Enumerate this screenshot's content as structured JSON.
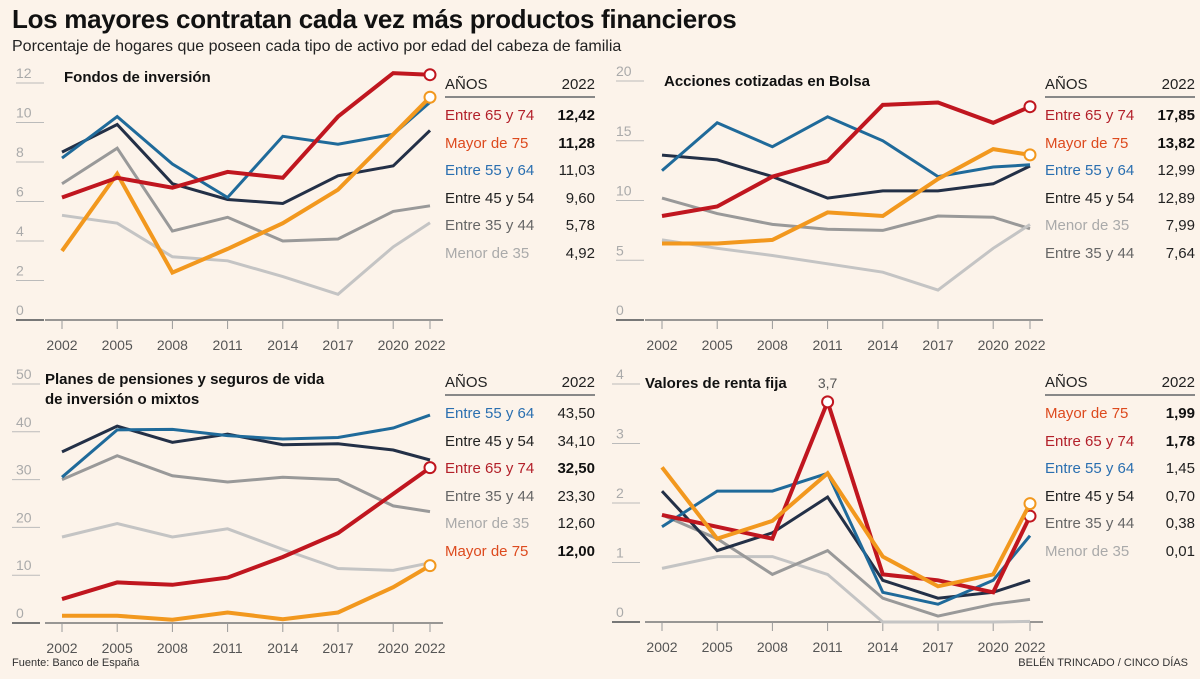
{
  "header": {
    "title": "Los mayores contratan cada vez más productos financieros",
    "subtitle": "Porcentaje de hogares que poseen cada tipo de activo por edad del cabeza de familia"
  },
  "footer": {
    "source": "Fuente: Banco de España",
    "credit": "BELÉN TRINCADO / CINCO DÍAS"
  },
  "colors": {
    "Entre 65 y 74": "#c0161f",
    "Mayor de 75": "#f2981e",
    "Entre 55 y 64": "#1f6a9a",
    "Entre 45 y 54": "#233047",
    "Entre 35 y 44": "#999999",
    "Menor de 35": "#c4c4c4"
  },
  "label_colors": {
    "Entre 65 y 74": "#b3202a",
    "Mayor de 75": "#dd4a1e",
    "Entre 55 y 64": "#2a6fb0",
    "Entre 45 y 54": "#222222",
    "Entre 35 y 44": "#666666",
    "Menor de 35": "#aaaaaa"
  },
  "chart_data": [
    {
      "type": "line",
      "title": "Fondos de inversión",
      "x": [
        "2002",
        "2005",
        "2008",
        "2011",
        "2014",
        "2017",
        "2020",
        "2022"
      ],
      "ylim": [
        0,
        12
      ],
      "yticks": [
        "0",
        "2",
        "4",
        "6",
        "8",
        "10",
        "12"
      ],
      "xlabel": "",
      "ylabel": "%",
      "legend_header": [
        "AÑOS",
        "2022"
      ],
      "series": [
        {
          "name": "Entre 65 y 74",
          "values": [
            6.2,
            7.2,
            6.7,
            7.5,
            7.2,
            10.3,
            12.5,
            12.42
          ],
          "label": "12,42",
          "bold": true,
          "marker": true
        },
        {
          "name": "Mayor de 75",
          "values": [
            3.5,
            7.4,
            2.4,
            3.6,
            4.9,
            6.6,
            9.4,
            11.28
          ],
          "label": "11,28",
          "bold": true,
          "marker": true
        },
        {
          "name": "Entre 55 y 64",
          "values": [
            8.2,
            10.3,
            7.9,
            6.2,
            9.3,
            8.9,
            9.4,
            11.03
          ],
          "label": "11,03",
          "bold": false,
          "marker": false
        },
        {
          "name": "Entre 45 y 54",
          "values": [
            8.5,
            9.9,
            6.9,
            6.1,
            5.9,
            7.3,
            7.8,
            9.6
          ],
          "label": "9,60",
          "bold": false,
          "marker": false
        },
        {
          "name": "Entre 35 y 44",
          "values": [
            6.9,
            8.7,
            4.5,
            5.2,
            4.0,
            4.1,
            5.5,
            5.78
          ],
          "label": "5,78",
          "bold": false,
          "marker": false
        },
        {
          "name": "Menor de 35",
          "values": [
            5.3,
            4.9,
            3.2,
            3.0,
            2.2,
            1.3,
            3.7,
            4.92
          ],
          "label": "4,92",
          "bold": false,
          "marker": false
        }
      ],
      "annotations": []
    },
    {
      "type": "line",
      "title": "Acciones cotizadas en Bolsa",
      "x": [
        "2002",
        "2005",
        "2008",
        "2011",
        "2014",
        "2017",
        "2020",
        "2022"
      ],
      "ylim": [
        0,
        20
      ],
      "yticks": [
        "0",
        "5",
        "10",
        "15",
        "20"
      ],
      "xlabel": "",
      "ylabel": "%",
      "legend_header": [
        "AÑOS",
        "2022"
      ],
      "series": [
        {
          "name": "Entre 65 y 74",
          "values": [
            8.7,
            9.5,
            12.0,
            13.3,
            18.0,
            18.2,
            16.5,
            17.85
          ],
          "label": "17,85",
          "bold": true,
          "marker": true
        },
        {
          "name": "Mayor de 75",
          "values": [
            6.4,
            6.4,
            6.7,
            9.0,
            8.7,
            11.8,
            14.3,
            13.82
          ],
          "label": "13,82",
          "bold": true,
          "marker": true
        },
        {
          "name": "Entre 55 y 64",
          "values": [
            12.5,
            16.5,
            14.5,
            17.0,
            15.0,
            12.0,
            12.8,
            12.99
          ],
          "label": "12,99",
          "bold": false,
          "marker": false
        },
        {
          "name": "Entre 45 y 54",
          "values": [
            13.8,
            13.4,
            12.0,
            10.2,
            10.8,
            10.8,
            11.4,
            12.89
          ],
          "label": "12,89",
          "bold": false,
          "marker": false
        },
        {
          "name": "Menor de 35",
          "values": [
            6.7,
            6.0,
            5.4,
            4.7,
            4.0,
            2.5,
            6.0,
            7.99
          ],
          "label": "7,99",
          "bold": false,
          "marker": false
        },
        {
          "name": "Entre 35 y 44",
          "values": [
            10.2,
            8.9,
            8.0,
            7.6,
            7.5,
            8.7,
            8.6,
            7.64
          ],
          "label": "7,64",
          "bold": false,
          "marker": false
        }
      ],
      "annotations": []
    },
    {
      "type": "line",
      "title": "Planes de pensiones y seguros de vida de inversión o mixtos",
      "title_lines": [
        "Planes de pensiones y seguros de vida",
        "de inversión o mixtos"
      ],
      "x": [
        "2002",
        "2005",
        "2008",
        "2011",
        "2014",
        "2017",
        "2020",
        "2022"
      ],
      "ylim": [
        0,
        50
      ],
      "yticks": [
        "0",
        "10",
        "20",
        "30",
        "40",
        "50"
      ],
      "xlabel": "",
      "ylabel": "%",
      "legend_header": [
        "AÑOS",
        "2022"
      ],
      "series": [
        {
          "name": "Entre 55 y 64",
          "values": [
            30.5,
            40.4,
            40.5,
            39.2,
            38.5,
            38.8,
            40.8,
            43.5
          ],
          "label": "43,50",
          "bold": false,
          "marker": false
        },
        {
          "name": "Entre 45 y 54",
          "values": [
            35.8,
            41.2,
            37.8,
            39.5,
            37.3,
            37.5,
            36.2,
            34.1
          ],
          "label": "34,10",
          "bold": false,
          "marker": false
        },
        {
          "name": "Entre 65 y 74",
          "values": [
            5.0,
            8.5,
            8.0,
            9.5,
            13.8,
            18.8,
            27.0,
            32.5
          ],
          "label": "32,50",
          "bold": true,
          "marker": true
        },
        {
          "name": "Entre 35 y 44",
          "values": [
            30.0,
            35.0,
            30.8,
            29.5,
            30.5,
            30.0,
            24.5,
            23.3
          ],
          "label": "23,30",
          "bold": false,
          "marker": false
        },
        {
          "name": "Menor de 35",
          "values": [
            18.0,
            20.8,
            18.0,
            19.7,
            15.4,
            11.4,
            11.0,
            12.6
          ],
          "label": "12,60",
          "bold": false,
          "marker": false
        },
        {
          "name": "Mayor de 75",
          "values": [
            1.5,
            1.5,
            0.7,
            2.2,
            0.8,
            2.2,
            7.5,
            12.0
          ],
          "label": "12,00",
          "bold": true,
          "marker": true
        }
      ],
      "annotations": []
    },
    {
      "type": "line",
      "title": "Valores de renta fija",
      "x": [
        "2002",
        "2005",
        "2008",
        "2011",
        "2014",
        "2017",
        "2020",
        "2022"
      ],
      "ylim": [
        0,
        4
      ],
      "yticks": [
        "0",
        "1",
        "2",
        "3",
        "4"
      ],
      "xlabel": "",
      "ylabel": "%",
      "legend_header": [
        "AÑOS",
        "2022"
      ],
      "series": [
        {
          "name": "Mayor de 75",
          "values": [
            2.6,
            1.4,
            1.7,
            2.5,
            1.1,
            0.6,
            0.8,
            1.99
          ],
          "label": "1,99",
          "bold": true,
          "marker": true
        },
        {
          "name": "Entre 65 y 74",
          "values": [
            1.8,
            1.6,
            1.4,
            3.7,
            0.8,
            0.7,
            0.5,
            1.78
          ],
          "label": "1,78",
          "bold": true,
          "marker": true
        },
        {
          "name": "Entre 55 y 64",
          "values": [
            1.6,
            2.2,
            2.2,
            2.5,
            0.5,
            0.3,
            0.7,
            1.45
          ],
          "label": "1,45",
          "bold": false,
          "marker": false
        },
        {
          "name": "Entre 45 y 54",
          "values": [
            2.2,
            1.2,
            1.5,
            2.1,
            0.7,
            0.4,
            0.5,
            0.7
          ],
          "label": "0,70",
          "bold": false,
          "marker": false
        },
        {
          "name": "Entre 35 y 44",
          "values": [
            1.8,
            1.4,
            0.8,
            1.2,
            0.4,
            0.1,
            0.3,
            0.38
          ],
          "label": "0,38",
          "bold": false,
          "marker": false
        },
        {
          "name": "Menor de 35",
          "values": [
            0.9,
            1.1,
            1.1,
            0.8,
            0.0,
            0.0,
            0.0,
            0.01
          ],
          "label": "0,01",
          "bold": false,
          "marker": false
        }
      ],
      "annotations": [
        {
          "series": "Entre 65 y 74",
          "x": "2011",
          "text": "3,7"
        }
      ]
    }
  ]
}
